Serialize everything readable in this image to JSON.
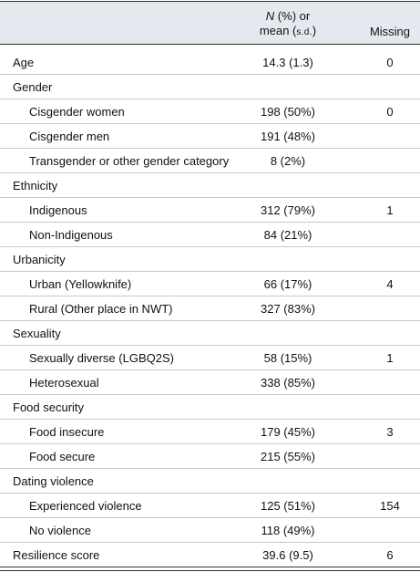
{
  "header": {
    "value_line1_italic": "N",
    "value_line1_rest": " (%) or",
    "value_line2_prefix": "mean (",
    "value_line2_sc": "s.d.",
    "value_line2_suffix": ")",
    "missing": "Missing"
  },
  "rows": [
    {
      "label": "Age",
      "value": "14.3 (1.3)",
      "missing": "0",
      "sub": false
    },
    {
      "label": "Gender",
      "value": "",
      "missing": "",
      "sub": false
    },
    {
      "label": "Cisgender women",
      "value": "198 (50%)",
      "missing": "0",
      "sub": true
    },
    {
      "label": "Cisgender men",
      "value": "191 (48%)",
      "missing": "",
      "sub": true
    },
    {
      "label": "Transgender or other gender category",
      "value": "8 (2%)",
      "missing": "",
      "sub": true
    },
    {
      "label": "Ethnicity",
      "value": "",
      "missing": "",
      "sub": false
    },
    {
      "label": "Indigenous",
      "value": "312 (79%)",
      "missing": "1",
      "sub": true
    },
    {
      "label": "Non-Indigenous",
      "value": "84 (21%)",
      "missing": "",
      "sub": true
    },
    {
      "label": "Urbanicity",
      "value": "",
      "missing": "",
      "sub": false
    },
    {
      "label": "Urban (Yellowknife)",
      "value": "66 (17%)",
      "missing": "4",
      "sub": true
    },
    {
      "label": "Rural (Other place in NWT)",
      "value": "327 (83%)",
      "missing": "",
      "sub": true
    },
    {
      "label": "Sexuality",
      "value": "",
      "missing": "",
      "sub": false
    },
    {
      "label": "Sexually diverse (LGBQ2S)",
      "value": "58 (15%)",
      "missing": "1",
      "sub": true
    },
    {
      "label": "Heterosexual",
      "value": "338 (85%)",
      "missing": "",
      "sub": true
    },
    {
      "label": "Food security",
      "value": "",
      "missing": "",
      "sub": false
    },
    {
      "label": "Food insecure",
      "value": "179 (45%)",
      "missing": "3",
      "sub": true
    },
    {
      "label": "Food secure",
      "value": "215 (55%)",
      "missing": "",
      "sub": true
    },
    {
      "label": "Dating violence",
      "value": "",
      "missing": "",
      "sub": false
    },
    {
      "label": "Experienced violence",
      "value": "125 (51%)",
      "missing": "154",
      "sub": true
    },
    {
      "label": "No violence",
      "value": "118 (49%)",
      "missing": "",
      "sub": true
    },
    {
      "label": "Resilience score",
      "value": "39.6 (9.5)",
      "missing": "6",
      "sub": false
    }
  ]
}
